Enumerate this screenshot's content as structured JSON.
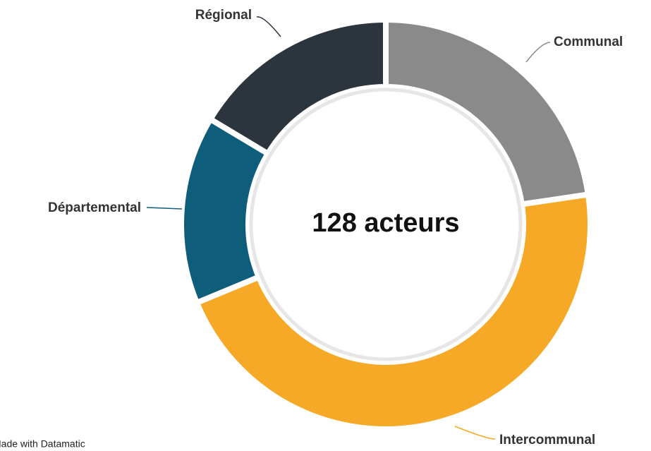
{
  "chart_data": {
    "type": "donut",
    "center_label": "128 acteurs",
    "categories": [
      "Communal",
      "Intercommunal",
      "Départemental",
      "Régional"
    ],
    "values": [
      29,
      59,
      19,
      21
    ],
    "colors": [
      "#8a8a8a",
      "#f6a927",
      "#0e5d7b",
      "#2c353d"
    ],
    "credit": "Made with Datamatic"
  }
}
